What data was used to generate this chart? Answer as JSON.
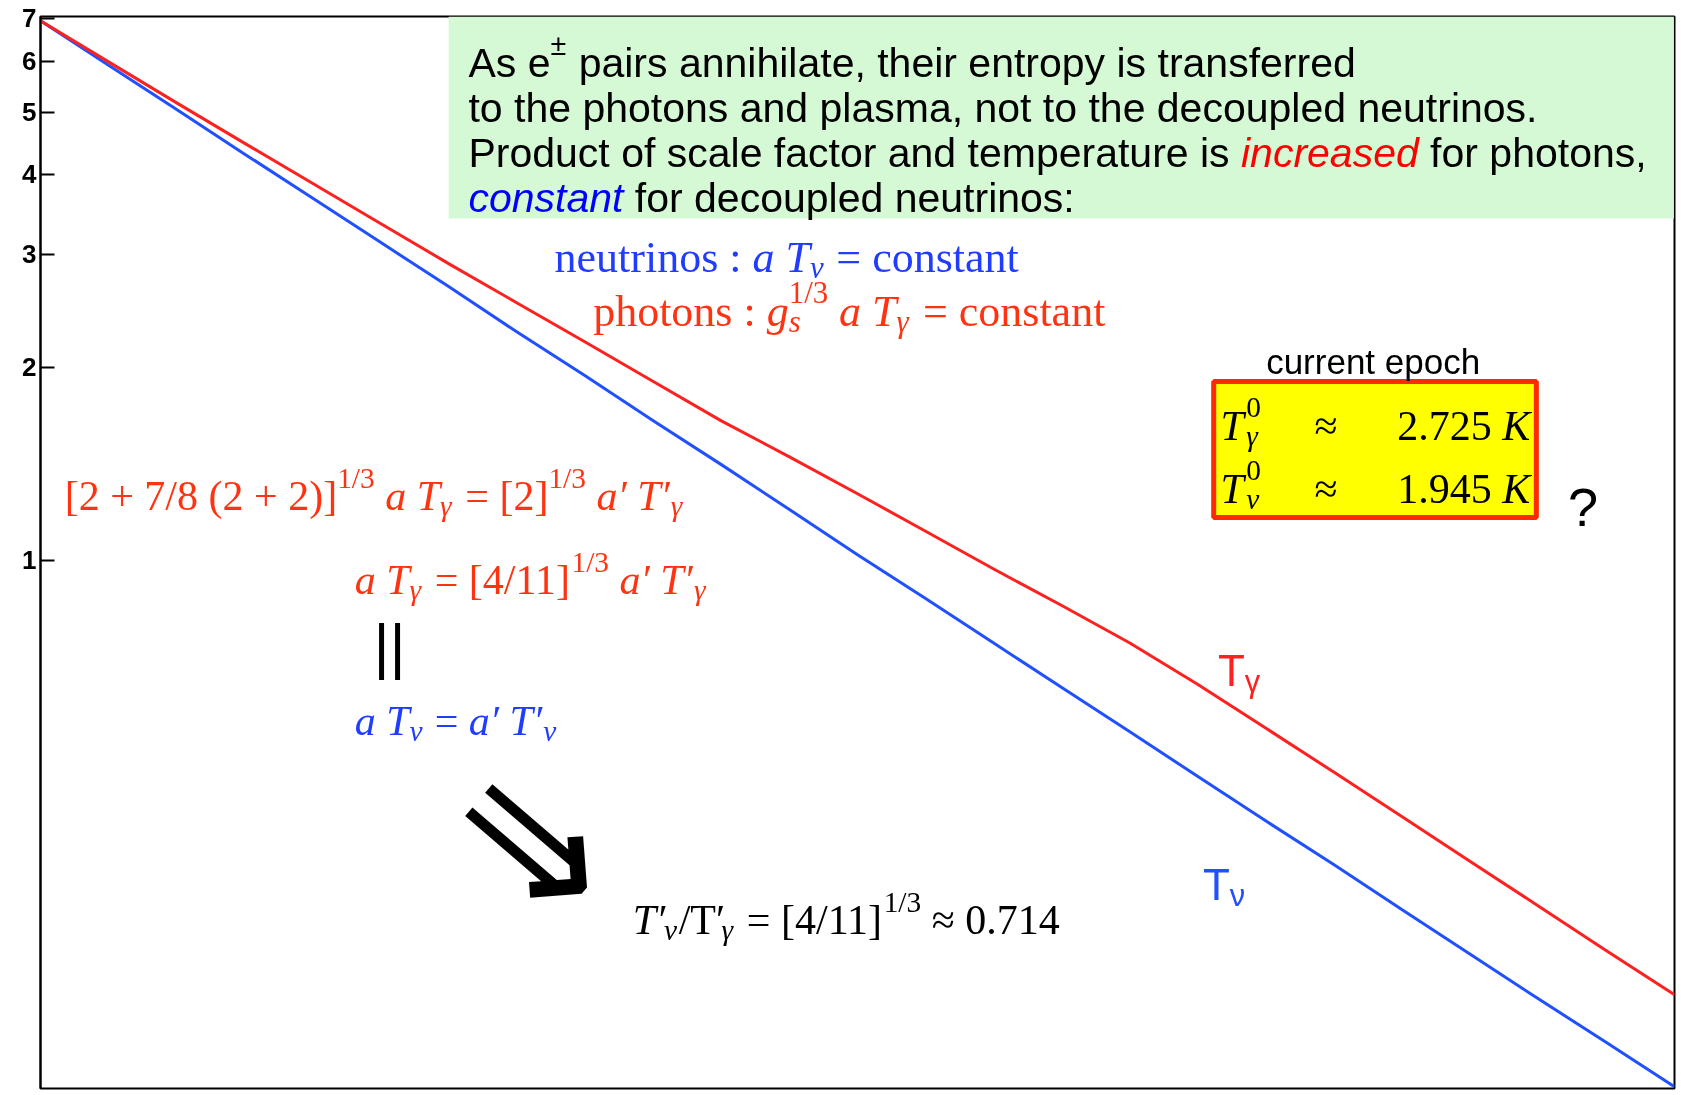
{
  "chart_data": {
    "type": "line",
    "categories": [
      null,
      null,
      null,
      null,
      null,
      null,
      null,
      null,
      null,
      null,
      null,
      null,
      null,
      null,
      null,
      null,
      null,
      null,
      null,
      null,
      null,
      null,
      null,
      null,
      null
    ],
    "series": [
      {
        "name": "T$_{ν}$",
        "color": "#2050ff",
        "values": [
          6.94,
          5.92,
          5.05,
          4.3,
          3.67,
          3.13,
          2.67,
          2.27,
          1.94,
          1.65,
          1.41,
          1.2,
          1.02,
          0.872,
          0.743,
          0.633,
          0.54,
          0.46,
          0.392,
          0.335,
          0.285,
          0.243,
          0.207,
          0.177,
          0.151
        ]
      },
      {
        "name": "T$_{γ}$",
        "color": "#ff2020",
        "values": [
          6.94,
          5.99,
          5.17,
          4.47,
          3.87,
          3.35,
          2.9,
          2.52,
          2.19,
          1.9,
          1.65,
          1.45,
          1.27,
          1.11,
          0.969,
          0.85,
          0.743,
          0.64,
          0.547,
          0.467,
          0.398,
          0.339,
          0.289,
          0.246,
          0.21
        ]
      }
    ],
    "log": "y",
    "ylim": [
      0.15,
      7.05
    ],
    "yticks": [
      1,
      2,
      3,
      4,
      5,
      6,
      7
    ],
    "tick_labels": "y",
    "annotations": [
      "As e$^{±}$ pairs annihilate, their entropy is transferred\nto the photons and plasma, not to the decoupled neutrinos.\nProduct of scale factor and temperature is increased for photons,\nconstant for decoupled neutrinos:",
      "neutrinos : a T$_{ν}$ = constant",
      "photons : g$_{s}$$^{1/3}$ a T$_{γ}$ = constant",
      "current epoch",
      "T$_{γ}$$^{0}$ ≈ 2.725 K\nT$_{ν}$$^{0}$ ≈ 1.945 K",
      "?",
      "[2 + 7/8 (2 + 2)]$^{1/3}$ a T$_{γ}$ = [2]$^{1/3}$ a′ T′$_{γ}$",
      "a T$_{γ}$ = [4/11]$^{1/3}$ a′ T′$_{γ}$",
      "||",
      "a T$_{ν}$ = a′ T′$_{ν}$",
      "⇒",
      "T′$_{ν}$/T′$_{γ}$ = [4/11]$^{1/3}$ ≈ 0.714"
    ]
  }
}
